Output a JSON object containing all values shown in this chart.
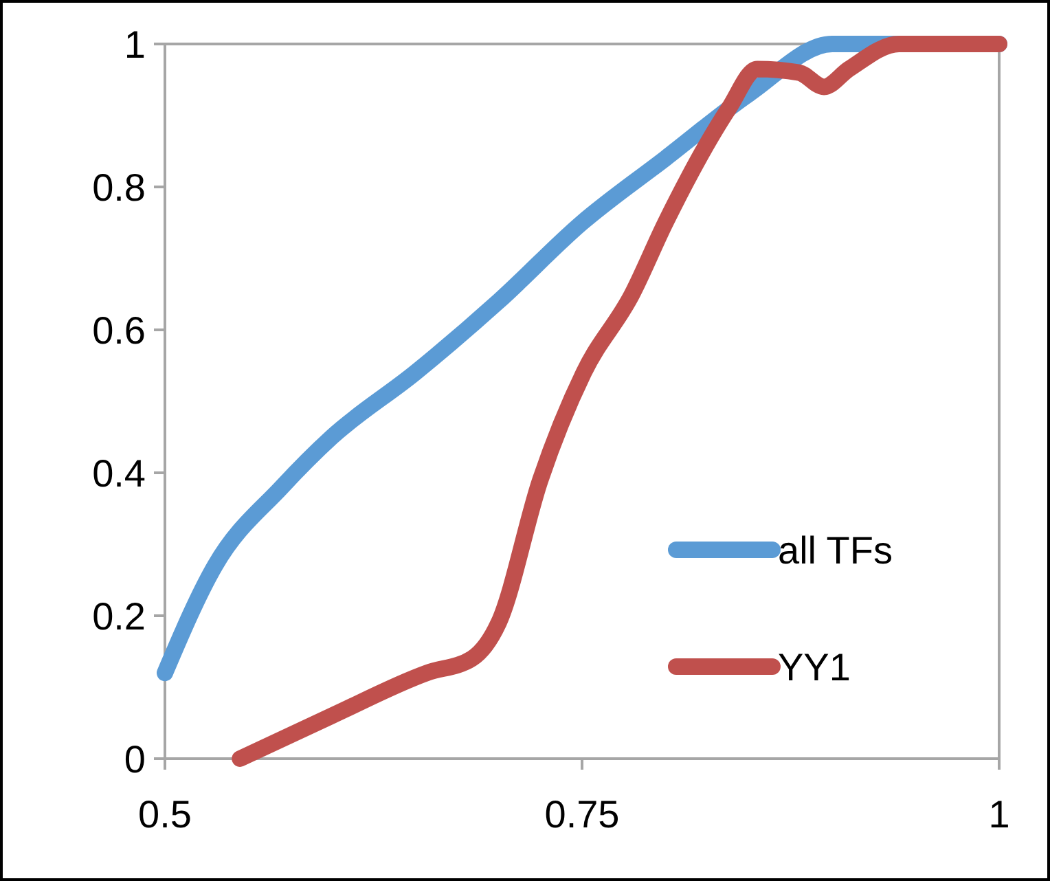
{
  "chart_data": {
    "type": "line",
    "xlim": [
      0.5,
      1
    ],
    "xticks": [
      0.5,
      0.75,
      1
    ],
    "ylim": [
      0,
      1
    ],
    "yticks": [
      0,
      0.2,
      0.4,
      0.6,
      0.8,
      1
    ],
    "grid": false,
    "legend": "bottom right",
    "marker": "none",
    "line_style": "solid",
    "series": [
      {
        "name": "all TFs",
        "color": "#5b9bd5",
        "x": [
          0.5,
          0.53,
          0.57,
          0.6,
          0.65,
          0.7,
          0.75,
          0.8,
          0.85,
          0.9,
          1
        ],
        "values": [
          0.12,
          0.27,
          0.38,
          0.45,
          0.54,
          0.64,
          0.75,
          0.84,
          0.93,
          1,
          1
        ]
      },
      {
        "name": "YY1",
        "color": "#c0504d",
        "x": [
          0.545,
          0.6,
          0.657,
          0.684,
          0.7,
          0.725,
          0.751,
          0.78,
          0.8,
          0.838,
          0.855,
          0.88,
          0.895,
          0.91,
          0.94,
          1
        ],
        "values": [
          0,
          0.06,
          0.12,
          0.14,
          0.19,
          0.39,
          0.54,
          0.65,
          0.75,
          0.91,
          0.965,
          0.96,
          0.94,
          0.965,
          1,
          1
        ]
      }
    ]
  }
}
